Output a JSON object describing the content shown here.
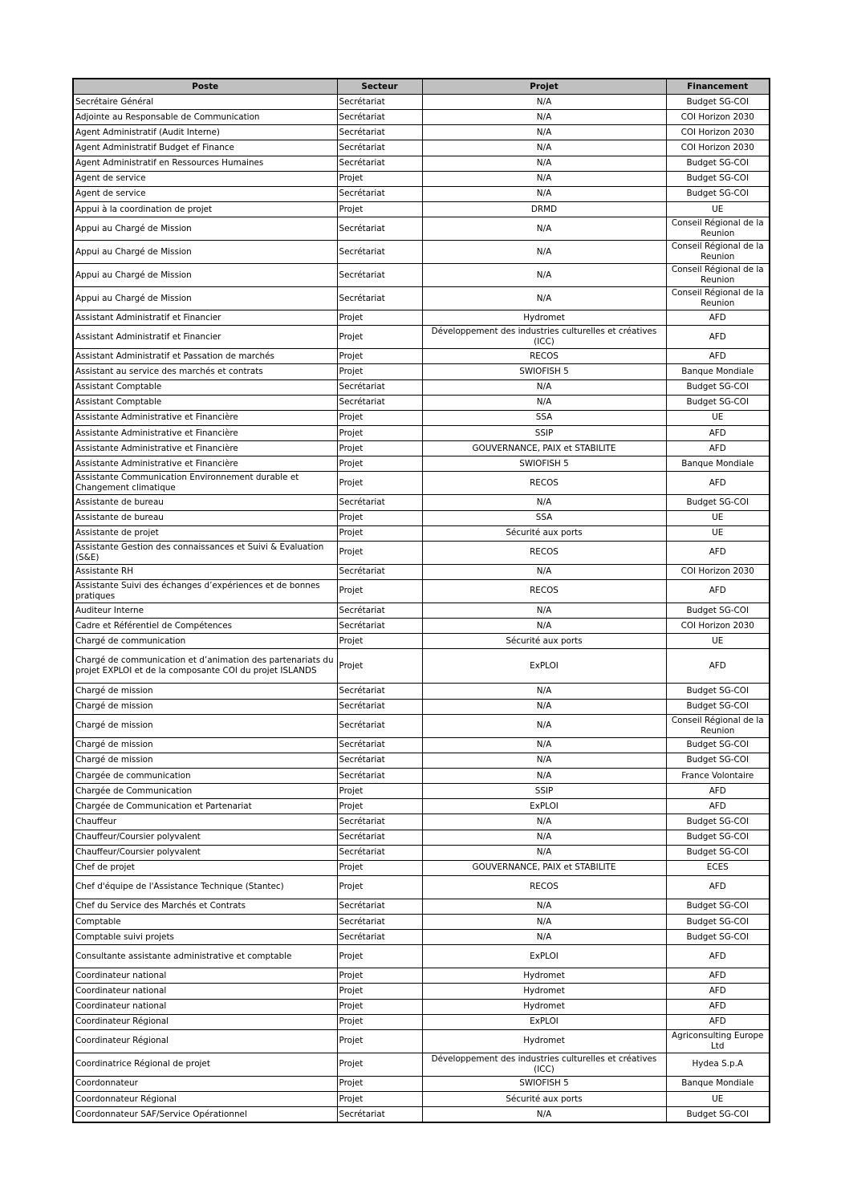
{
  "headers": {
    "poste": "Poste",
    "secteur": "Secteur",
    "projet": "Projet",
    "financement": "Financement"
  },
  "rows": [
    [
      "Secrétaire Général",
      "Secrétariat",
      "N/A",
      "Budget SG-COI",
      "n"
    ],
    [
      "Adjointe au Responsable de Communication",
      "Secrétariat",
      "N/A",
      "COI Horizon 2030",
      "n"
    ],
    [
      "Agent Administratif (Audit Interne)",
      "Secrétariat",
      "N/A",
      "COI Horizon 2030",
      "n"
    ],
    [
      "Agent Administratif Budget ef Finance",
      "Secrétariat",
      "N/A",
      "COI Horizon 2030",
      "n"
    ],
    [
      "Agent Administratif en Ressources Humaines",
      "Secrétariat",
      "N/A",
      "Budget SG-COI",
      "n"
    ],
    [
      "Agent de service",
      "Projet",
      "N/A",
      "Budget SG-COI",
      "n"
    ],
    [
      "Agent de service",
      "Secrétariat",
      "N/A",
      "Budget SG-COI",
      "n"
    ],
    [
      "Appui à la coordination de projet",
      "Projet",
      "DRMD",
      "UE",
      "n"
    ],
    [
      "Appui au Chargé de Mission",
      "Secrétariat",
      "N/A",
      "Conseil Régional de la Reunion",
      "t"
    ],
    [
      "Appui au Chargé de Mission",
      "Secrétariat",
      "N/A",
      "Conseil Régional de la Reunion",
      "t"
    ],
    [
      "Appui au Chargé de Mission",
      "Secrétariat",
      "N/A",
      "Conseil Régional de la Reunion",
      "t"
    ],
    [
      "Appui au Chargé de Mission",
      "Secrétariat",
      "N/A",
      "Conseil Régional de la Reunion",
      "t"
    ],
    [
      "Assistant Administratif et Financier",
      "Projet",
      "Hydromet",
      "AFD",
      "n"
    ],
    [
      "Assistant Administratif et Financier",
      "Projet",
      "Développement des industries culturelles et créatives (ICC)",
      "AFD",
      "t"
    ],
    [
      "Assistant Administratif et Passation de marchés",
      "Projet",
      "RECOS",
      "AFD",
      "n"
    ],
    [
      "Assistant au service des marchés et contrats",
      "Projet",
      "SWIOFISH 5",
      "Banque Mondiale",
      "n"
    ],
    [
      "Assistant Comptable",
      "Secrétariat",
      "N/A",
      "Budget SG-COI",
      "n"
    ],
    [
      "Assistant Comptable",
      "Secrétariat",
      "N/A",
      "Budget SG-COI",
      "n"
    ],
    [
      "Assistante Administrative et Financière",
      "Projet",
      "SSA",
      "UE",
      "n"
    ],
    [
      "Assistante Administrative et Financière",
      "Projet",
      "SSIP",
      "AFD",
      "n"
    ],
    [
      "Assistante Administrative et Financière",
      "Projet",
      "GOUVERNANCE, PAIX et STABILITE",
      "AFD",
      "n"
    ],
    [
      "Assistante Administrative et Financière",
      "Projet",
      "SWIOFISH 5",
      "Banque Mondiale",
      "n"
    ],
    [
      "Assistante Communication Environnement durable et Changement climatique",
      "Projet",
      "RECOS",
      "AFD",
      "t"
    ],
    [
      "Assistante de bureau",
      "Secrétariat",
      "N/A",
      "Budget SG-COI",
      "n"
    ],
    [
      "Assistante de bureau",
      "Projet",
      "SSA",
      "UE",
      "n"
    ],
    [
      "Assistante de projet",
      "Projet",
      "Sécurité aux ports",
      "UE",
      "n"
    ],
    [
      "Assistante Gestion des connaissances et Suivi & Evaluation (S&E)",
      "Projet",
      "RECOS",
      "AFD",
      "t"
    ],
    [
      "Assistante RH",
      "Secrétariat",
      "N/A",
      "COI Horizon 2030",
      "n"
    ],
    [
      "Assistante Suivi des échanges d’expériences et de bonnes pratiques",
      "Projet",
      "RECOS",
      "AFD",
      "t"
    ],
    [
      "Auditeur Interne",
      "Secrétariat",
      "N/A",
      "Budget SG-COI",
      "n"
    ],
    [
      "Cadre et Référentiel de Compétences",
      "Secrétariat",
      "N/A",
      "COI Horizon 2030",
      "n"
    ],
    [
      "Chargé de communication",
      "Projet",
      "Sécurité aux ports",
      "UE",
      "n"
    ],
    [
      "Chargé de communication et d’animation des partenariats du projet EXPLOI et de la composante COI du projet ISLANDS",
      "Projet",
      "ExPLOI",
      "AFD",
      "x"
    ],
    [
      "Chargé de mission",
      "Secrétariat",
      "N/A",
      "Budget SG-COI",
      "n"
    ],
    [
      "Chargé de mission",
      "Secrétariat",
      "N/A",
      "Budget SG-COI",
      "n"
    ],
    [
      "Chargé de mission",
      "Secrétariat",
      "N/A",
      "Conseil Régional de la Reunion",
      "t"
    ],
    [
      "Chargé de mission",
      "Secrétariat",
      "N/A",
      "Budget SG-COI",
      "n"
    ],
    [
      "Chargé de mission",
      "Secrétariat",
      "N/A",
      "Budget SG-COI",
      "n"
    ],
    [
      "Chargée de communication",
      "Secrétariat",
      "N/A",
      "France Volontaire",
      "n"
    ],
    [
      "Chargée de Communication",
      "Projet",
      "SSIP",
      "AFD",
      "n"
    ],
    [
      "Chargée de Communication et Partenariat",
      "Projet",
      "ExPLOI",
      "AFD",
      "n"
    ],
    [
      "Chauffeur",
      "Secrétariat",
      "N/A",
      "Budget SG-COI",
      "n"
    ],
    [
      "Chauffeur/Coursier polyvalent",
      "Secrétariat",
      "N/A",
      "Budget SG-COI",
      "n"
    ],
    [
      "Chauffeur/Coursier polyvalent",
      "Secrétariat",
      "N/A",
      "Budget SG-COI",
      "n"
    ],
    [
      "Chef de projet",
      "Projet",
      "GOUVERNANCE, PAIX et STABILITE",
      "ECES",
      "n"
    ],
    [
      "Chef d'équipe de l'Assistance Technique (Stantec)",
      "Projet",
      "RECOS",
      "AFD",
      "t"
    ],
    [
      "Chef du Service des Marchés et Contrats",
      "Secrétariat",
      "N/A",
      "Budget SG-COI",
      "n"
    ],
    [
      "Comptable",
      "Secrétariat",
      "N/A",
      "Budget SG-COI",
      "n"
    ],
    [
      "Comptable suivi projets",
      "Secrétariat",
      "N/A",
      "Budget SG-COI",
      "n"
    ],
    [
      "Consultante assistante administrative et comptable",
      "Projet",
      "ExPLOI",
      "AFD",
      "t"
    ],
    [
      "Coordinateur national",
      "Projet",
      "Hydromet",
      "AFD",
      "n"
    ],
    [
      "Coordinateur national",
      "Projet",
      "Hydromet",
      "AFD",
      "n"
    ],
    [
      "Coordinateur national",
      "Projet",
      "Hydromet",
      "AFD",
      "n"
    ],
    [
      "Coordinateur Régional",
      "Projet",
      "ExPLOI",
      "AFD",
      "n"
    ],
    [
      "Coordinateur Régional",
      "Projet",
      "Hydromet",
      "Agriconsulting Europe Ltd",
      "t"
    ],
    [
      "Coordinatrice Régional de projet",
      "Projet",
      "Développement des industries culturelles et créatives (ICC)",
      "Hydea S.p.A",
      "t"
    ],
    [
      "Coordonnateur",
      "Projet",
      "SWIOFISH 5",
      "Banque Mondiale",
      "n"
    ],
    [
      "Coordonnateur Régional",
      "Projet",
      "Sécurité aux ports",
      "UE",
      "n"
    ],
    [
      "Coordonnateur SAF/Service Opérationnel",
      "Secrétariat",
      "N/A",
      "Budget SG-COI",
      "n"
    ]
  ]
}
